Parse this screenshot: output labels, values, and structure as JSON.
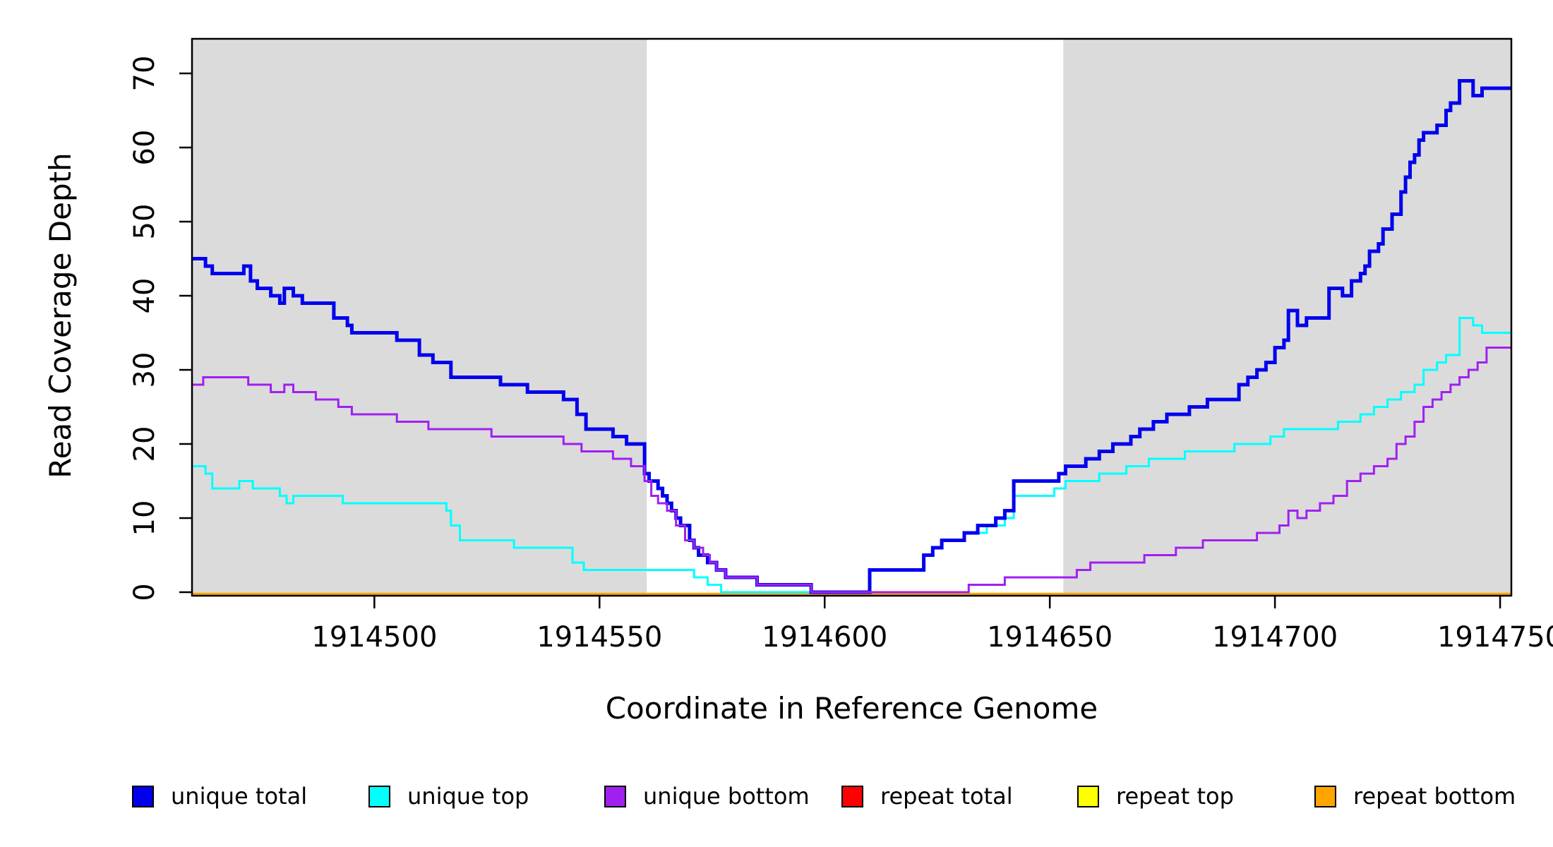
{
  "figure": {
    "background": "#ffffff",
    "accent_black": "#000000"
  },
  "chart_data": {
    "type": "line",
    "subtype": "step",
    "title": "",
    "xlabel": "Coordinate in Reference Genome",
    "ylabel": "Read Coverage Depth",
    "xlim": [
      1914459.5,
      1914752.5
    ],
    "ylim": [
      0,
      74.7
    ],
    "x_ticks": [
      1914500,
      1914550,
      1914600,
      1914650,
      1914700,
      1914750
    ],
    "y_ticks": [
      0,
      10,
      20,
      30,
      40,
      50,
      60,
      70
    ],
    "grid": false,
    "legend_position": "bottom",
    "shaded_regions": [
      {
        "name": "left-gray-band",
        "x0": 1914459.5,
        "x1": 1914560.5,
        "color": "#DBDBDB"
      },
      {
        "name": "right-gray-band",
        "x0": 1914653.0,
        "x1": 1914752.5,
        "color": "#DBDBDB"
      }
    ],
    "series": [
      {
        "name": "repeat total",
        "color": "#FF0000",
        "width": 3,
        "steps": [
          [
            1914459.5,
            0
          ]
        ]
      },
      {
        "name": "repeat top",
        "color": "#FFFF00",
        "width": 3,
        "steps": [
          [
            1914459.5,
            0
          ]
        ]
      },
      {
        "name": "repeat bottom",
        "color": "#FFA500",
        "width": 3.5,
        "steps": [
          [
            1914459.5,
            0
          ]
        ]
      },
      {
        "name": "unique top",
        "color": "#00FFFF",
        "width": 3,
        "steps": [
          [
            1914459.5,
            17
          ],
          [
            1914462.5,
            16
          ],
          [
            1914464,
            14
          ],
          [
            1914470,
            15
          ],
          [
            1914473,
            14
          ],
          [
            1914479,
            13
          ],
          [
            1914480.5,
            12
          ],
          [
            1914482,
            13
          ],
          [
            1914493,
            12
          ],
          [
            1914516,
            11
          ],
          [
            1914517,
            9
          ],
          [
            1914519,
            7
          ],
          [
            1914531,
            6
          ],
          [
            1914544,
            4
          ],
          [
            1914546.5,
            3
          ],
          [
            1914571,
            2
          ],
          [
            1914574,
            1
          ],
          [
            1914577,
            0
          ],
          [
            1914610,
            3
          ],
          [
            1914622,
            5
          ],
          [
            1914624,
            6
          ],
          [
            1914626,
            7
          ],
          [
            1914631,
            8
          ],
          [
            1914636,
            9
          ],
          [
            1914640,
            10
          ],
          [
            1914642,
            13
          ],
          [
            1914651,
            14
          ],
          [
            1914653.5,
            15
          ],
          [
            1914661,
            16
          ],
          [
            1914667,
            17
          ],
          [
            1914672,
            18
          ],
          [
            1914680,
            19
          ],
          [
            1914691,
            20
          ],
          [
            1914699,
            21
          ],
          [
            1914702,
            22
          ],
          [
            1914714,
            23
          ],
          [
            1914719,
            24
          ],
          [
            1914722,
            25
          ],
          [
            1914725,
            26
          ],
          [
            1914728,
            27
          ],
          [
            1914731,
            28
          ],
          [
            1914733,
            30
          ],
          [
            1914736,
            31
          ],
          [
            1914738,
            32
          ],
          [
            1914741,
            37
          ],
          [
            1914744,
            36
          ],
          [
            1914746,
            35
          ]
        ]
      },
      {
        "name": "unique total",
        "color": "#0000EE",
        "width": 5,
        "steps": [
          [
            1914459.5,
            45
          ],
          [
            1914462.5,
            44
          ],
          [
            1914464,
            43
          ],
          [
            1914471,
            44
          ],
          [
            1914472.5,
            42
          ],
          [
            1914474,
            41
          ],
          [
            1914477,
            40
          ],
          [
            1914479,
            39
          ],
          [
            1914480,
            41
          ],
          [
            1914482,
            40
          ],
          [
            1914484,
            39
          ],
          [
            1914491,
            37
          ],
          [
            1914494,
            36
          ],
          [
            1914495,
            35
          ],
          [
            1914505,
            34
          ],
          [
            1914510,
            32
          ],
          [
            1914513,
            31
          ],
          [
            1914517,
            29
          ],
          [
            1914528,
            28
          ],
          [
            1914534,
            27
          ],
          [
            1914542,
            26
          ],
          [
            1914545,
            24
          ],
          [
            1914547,
            22
          ],
          [
            1914553,
            21
          ],
          [
            1914556,
            20
          ],
          [
            1914560,
            16
          ],
          [
            1914561,
            15
          ],
          [
            1914563,
            14
          ],
          [
            1914564,
            13
          ],
          [
            1914565,
            12
          ],
          [
            1914566,
            11
          ],
          [
            1914567,
            10
          ],
          [
            1914568,
            9
          ],
          [
            1914570,
            7
          ],
          [
            1914571,
            6
          ],
          [
            1914572,
            5
          ],
          [
            1914574,
            4
          ],
          [
            1914576,
            3
          ],
          [
            1914578,
            2
          ],
          [
            1914585,
            1
          ],
          [
            1914597,
            0
          ],
          [
            1914610,
            3
          ],
          [
            1914622,
            5
          ],
          [
            1914624,
            6
          ],
          [
            1914626,
            7
          ],
          [
            1914631,
            8
          ],
          [
            1914634,
            9
          ],
          [
            1914638,
            10
          ],
          [
            1914640,
            11
          ],
          [
            1914642,
            15
          ],
          [
            1914652,
            16
          ],
          [
            1914653.5,
            17
          ],
          [
            1914658,
            18
          ],
          [
            1914661,
            19
          ],
          [
            1914664,
            20
          ],
          [
            1914668,
            21
          ],
          [
            1914670,
            22
          ],
          [
            1914673,
            23
          ],
          [
            1914676,
            24
          ],
          [
            1914681,
            25
          ],
          [
            1914685,
            26
          ],
          [
            1914692,
            28
          ],
          [
            1914694,
            29
          ],
          [
            1914696,
            30
          ],
          [
            1914698,
            31
          ],
          [
            1914700,
            33
          ],
          [
            1914702,
            34
          ],
          [
            1914703,
            38
          ],
          [
            1914705,
            36
          ],
          [
            1914707,
            37
          ],
          [
            1914712,
            41
          ],
          [
            1914715,
            40
          ],
          [
            1914717,
            42
          ],
          [
            1914719,
            43
          ],
          [
            1914720,
            44
          ],
          [
            1914721,
            46
          ],
          [
            1914723,
            47
          ],
          [
            1914724,
            49
          ],
          [
            1914726,
            51
          ],
          [
            1914728,
            54
          ],
          [
            1914729,
            56
          ],
          [
            1914730,
            58
          ],
          [
            1914731,
            59
          ],
          [
            1914732,
            61
          ],
          [
            1914733,
            62
          ],
          [
            1914736,
            63
          ],
          [
            1914738,
            65
          ],
          [
            1914739,
            66
          ],
          [
            1914741,
            69
          ],
          [
            1914744,
            67
          ],
          [
            1914746,
            68
          ]
        ]
      },
      {
        "name": "unique bottom",
        "color": "#A020F0",
        "width": 3,
        "steps": [
          [
            1914459.5,
            28
          ],
          [
            1914462,
            29
          ],
          [
            1914472,
            28
          ],
          [
            1914477,
            27
          ],
          [
            1914480,
            28
          ],
          [
            1914482,
            27
          ],
          [
            1914487,
            26
          ],
          [
            1914492,
            25
          ],
          [
            1914495,
            24
          ],
          [
            1914505,
            23
          ],
          [
            1914512,
            22
          ],
          [
            1914526,
            21
          ],
          [
            1914542,
            20
          ],
          [
            1914546,
            19
          ],
          [
            1914553,
            18
          ],
          [
            1914557,
            17
          ],
          [
            1914560,
            15
          ],
          [
            1914561.5,
            13
          ],
          [
            1914563,
            12
          ],
          [
            1914565,
            11
          ],
          [
            1914567,
            9
          ],
          [
            1914569,
            7
          ],
          [
            1914571,
            6
          ],
          [
            1914573,
            5
          ],
          [
            1914574.5,
            4
          ],
          [
            1914576,
            3
          ],
          [
            1914578,
            2
          ],
          [
            1914585,
            1
          ],
          [
            1914597,
            0
          ],
          [
            1914632,
            1
          ],
          [
            1914640,
            2
          ],
          [
            1914656,
            3
          ],
          [
            1914659,
            4
          ],
          [
            1914671,
            5
          ],
          [
            1914678,
            6
          ],
          [
            1914684,
            7
          ],
          [
            1914696,
            8
          ],
          [
            1914701,
            9
          ],
          [
            1914703,
            11
          ],
          [
            1914705,
            10
          ],
          [
            1914707,
            11
          ],
          [
            1914710,
            12
          ],
          [
            1914713,
            13
          ],
          [
            1914716,
            15
          ],
          [
            1914719,
            16
          ],
          [
            1914722,
            17
          ],
          [
            1914725,
            18
          ],
          [
            1914727,
            20
          ],
          [
            1914729,
            21
          ],
          [
            1914731,
            23
          ],
          [
            1914733,
            25
          ],
          [
            1914735,
            26
          ],
          [
            1914737,
            27
          ],
          [
            1914739,
            28
          ],
          [
            1914741,
            29
          ],
          [
            1914743,
            30
          ],
          [
            1914745,
            31
          ],
          [
            1914747,
            33
          ]
        ]
      }
    ]
  },
  "legend": {
    "items": [
      {
        "label": "unique total",
        "color": "#0000EE"
      },
      {
        "label": "unique top",
        "color": "#00FFFF"
      },
      {
        "label": "unique bottom",
        "color": "#A020F0"
      },
      {
        "label": "repeat total",
        "color": "#FF0000"
      },
      {
        "label": "repeat top",
        "color": "#FFFF00"
      },
      {
        "label": "repeat bottom",
        "color": "#FFA500"
      }
    ]
  }
}
